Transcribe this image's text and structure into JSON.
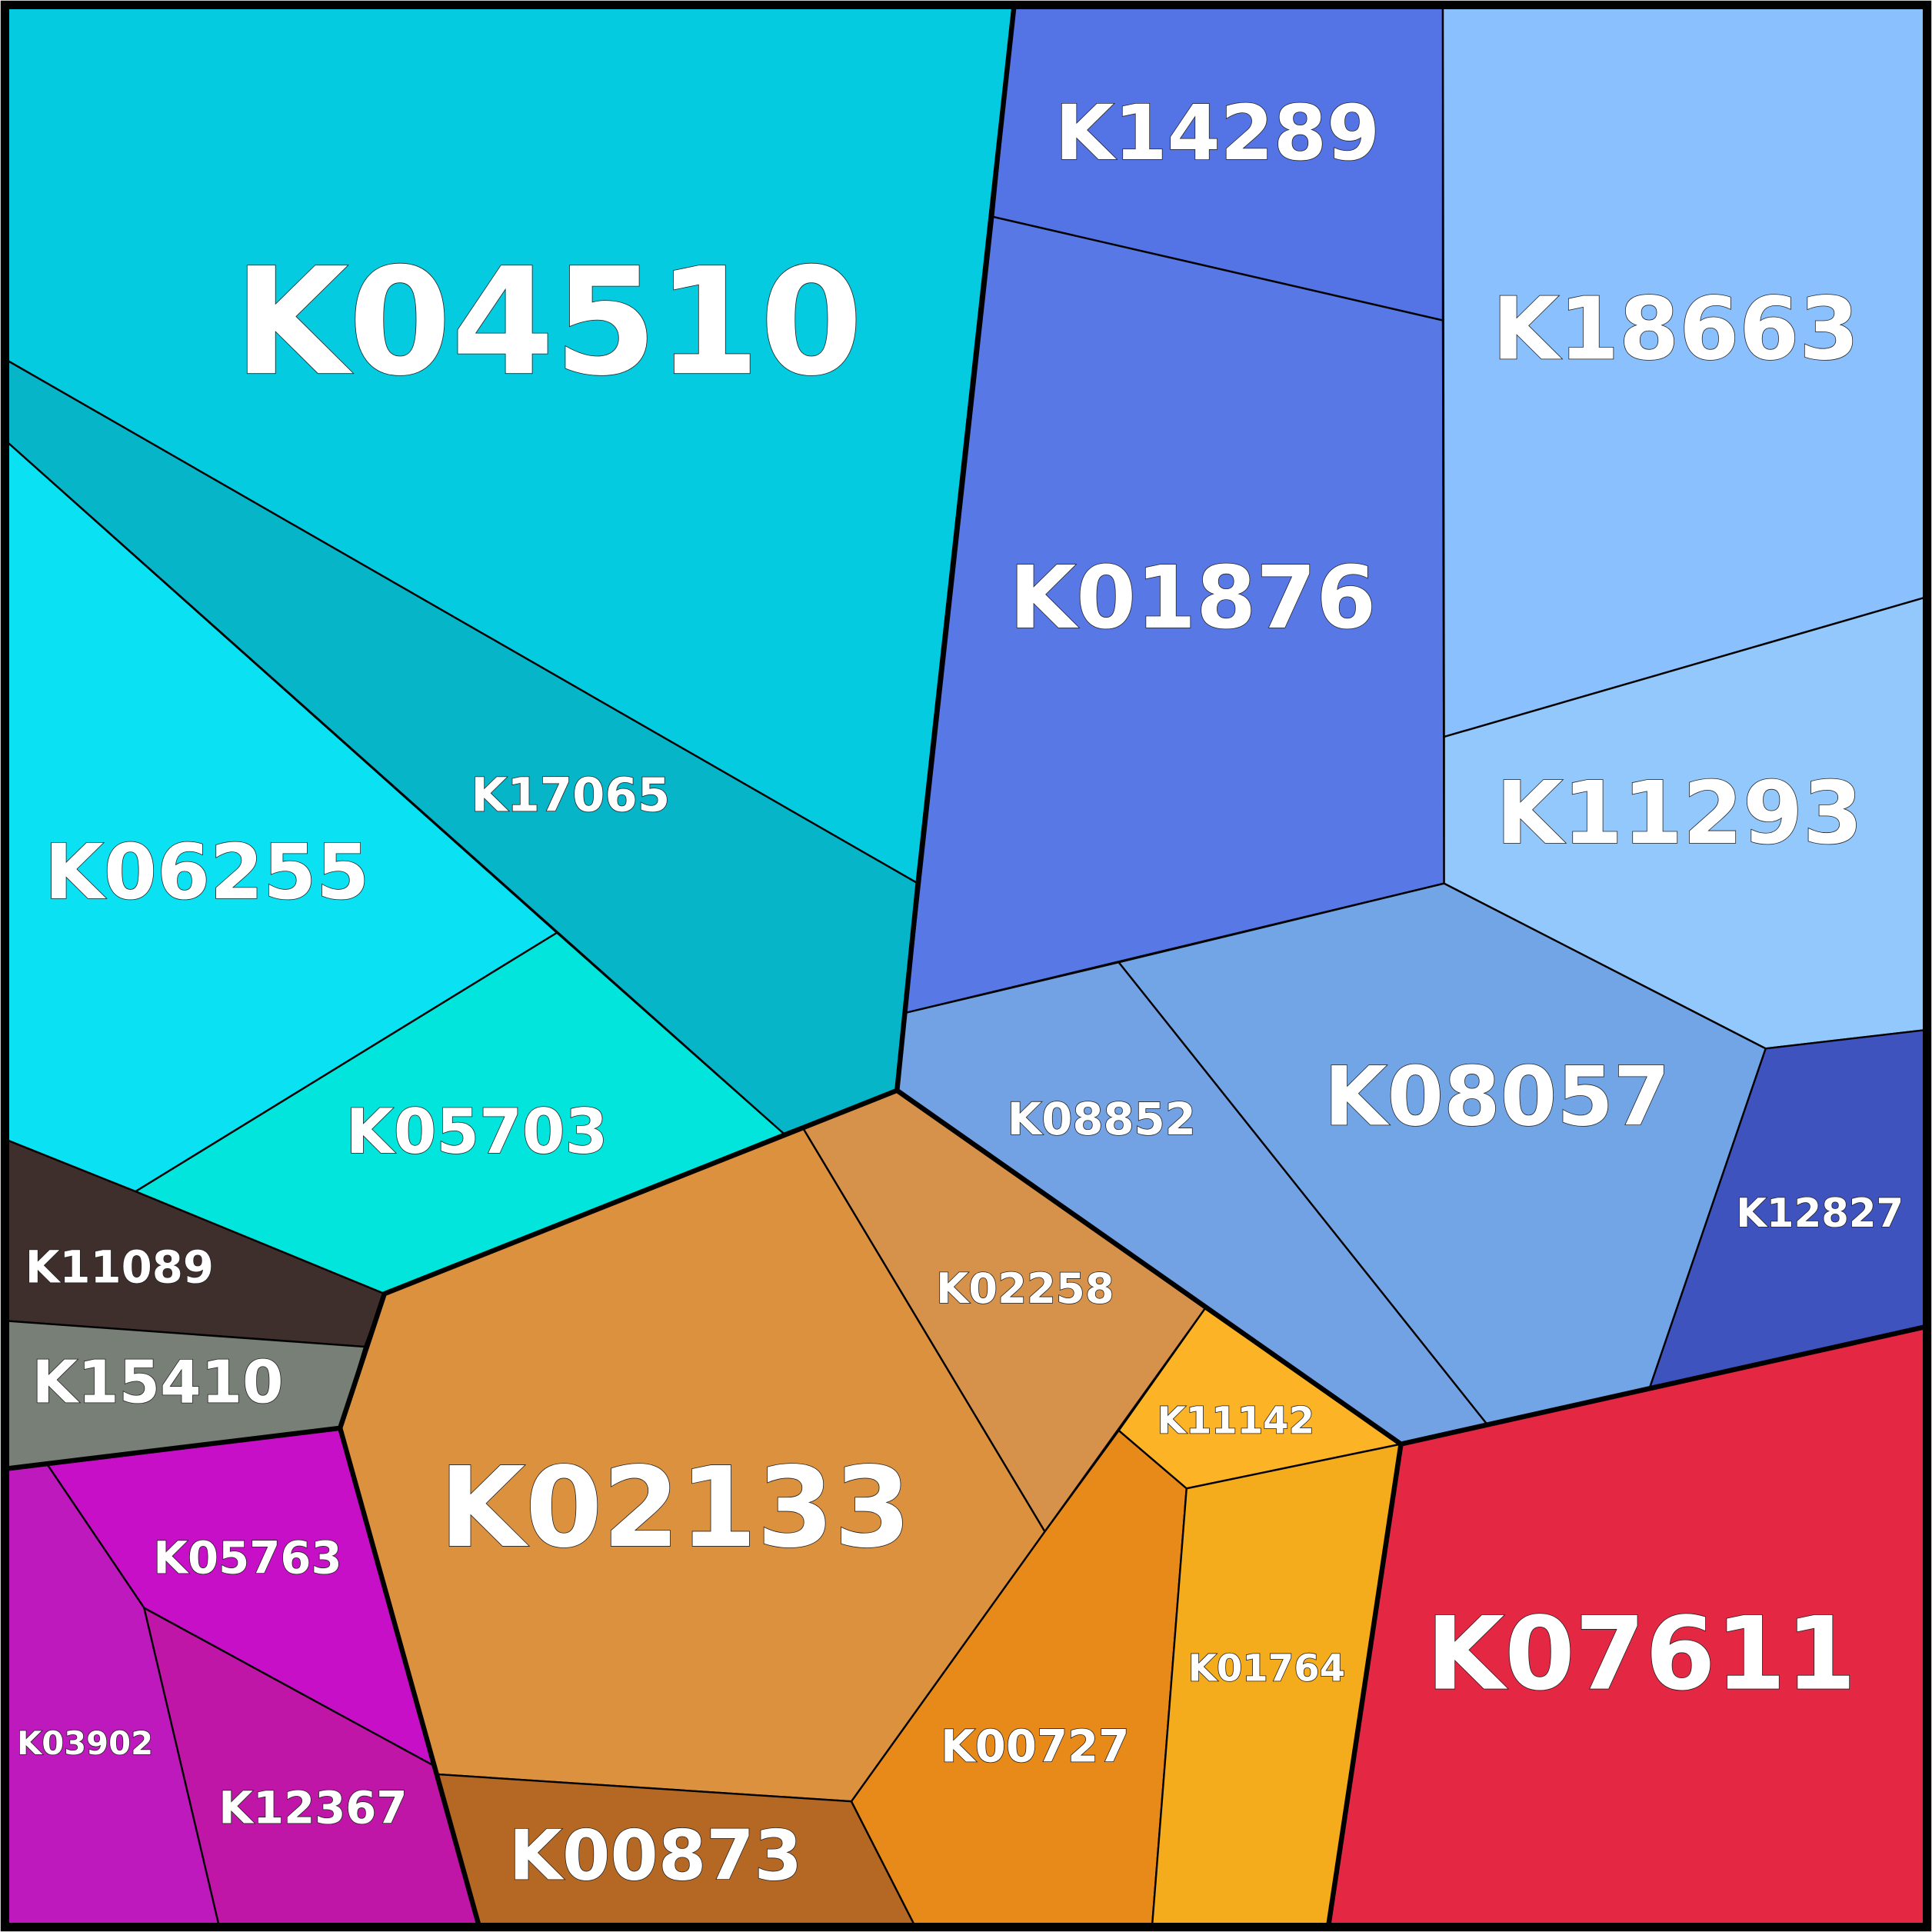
{
  "cells": [
    {
      "label": "K04510",
      "color": "#04cbe0"
    },
    {
      "label": "K17065",
      "color": "#06b5c8"
    },
    {
      "label": "K06255",
      "color": "#0ae2f4"
    },
    {
      "label": "K05703",
      "color": "#02e5dc"
    },
    {
      "label": "K11089",
      "color": "#3e2e2c"
    },
    {
      "label": "K15410",
      "color": "#787f76"
    },
    {
      "label": "K05763",
      "color": "#c60fc6"
    },
    {
      "label": "K03902",
      "color": "#bd19bd"
    },
    {
      "label": "K12367",
      "color": "#c016a8"
    },
    {
      "label": "K02133",
      "color": "#dc913f"
    },
    {
      "label": "K02258",
      "color": "#d6914b"
    },
    {
      "label": "K00873",
      "color": "#b56724"
    },
    {
      "label": "K00727",
      "color": "#e88a1a"
    },
    {
      "label": "K11142",
      "color": "#fdb326"
    },
    {
      "label": "K01764",
      "color": "#f4ab1c"
    },
    {
      "label": "K07611",
      "color": "#e42843"
    },
    {
      "label": "K14289",
      "color": "#5473e4"
    },
    {
      "label": "K01876",
      "color": "#5878e6"
    },
    {
      "label": "K18663",
      "color": "#89c0fd"
    },
    {
      "label": "K11293",
      "color": "#92c8fc"
    },
    {
      "label": "K08852",
      "color": "#72a2e4"
    },
    {
      "label": "K08057",
      "color": "#72a5e6"
    },
    {
      "label": "K12827",
      "color": "#3f53bf"
    }
  ]
}
